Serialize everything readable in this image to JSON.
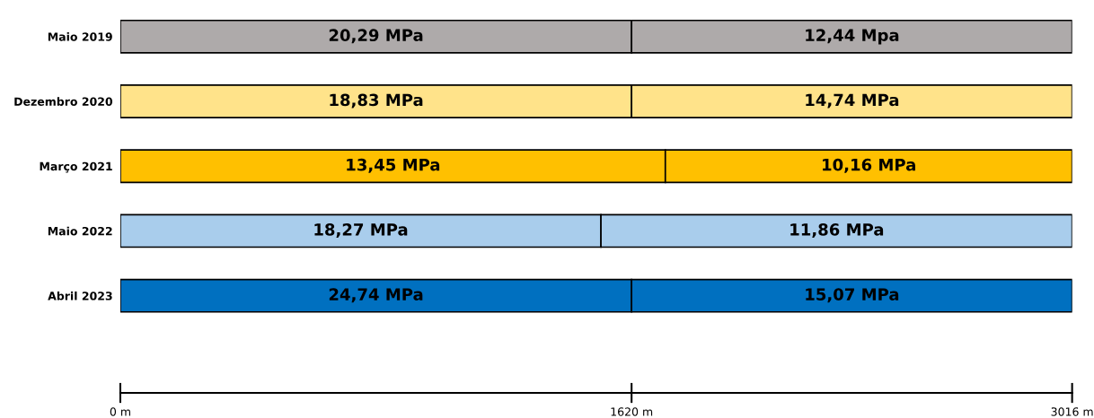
{
  "chart_data": {
    "type": "bar",
    "orientation": "horizontal",
    "stacked": true,
    "categories": [
      "Maio 2019",
      "Dezembro 2020",
      "Março 2021",
      "Maio 2022",
      "Abril 2023"
    ],
    "series": [
      {
        "colors": [
          "#aeaaaa",
          "#ffe38a",
          "#ffc000",
          "#a9cdec",
          "#0070c0"
        ],
        "values": [
          1620,
          1620,
          1727,
          1523,
          1620
        ]
      },
      {
        "colors": [
          "#aeaaaa",
          "#ffe38a",
          "#ffc000",
          "#a9cdec",
          "#0070c0"
        ],
        "values": [
          1396,
          1396,
          1289,
          1493,
          1396
        ]
      }
    ],
    "annotations": [
      "20,29 MPa",
      "18,83 MPa",
      "13,45 MPa",
      "18,27 MPa",
      "24,74 MPa",
      "12,44 Mpa",
      "14,74 MPa",
      "10,16 MPa",
      "11,86 MPa",
      "15,07 MPa"
    ],
    "xlim": [
      0,
      3016
    ],
    "xticks": [
      {
        "value": 0,
        "label": "0 m"
      },
      {
        "value": 1620,
        "label": "1620 m"
      },
      {
        "value": 3016,
        "label": "3016 m"
      }
    ],
    "grid": false,
    "legend": false
  }
}
